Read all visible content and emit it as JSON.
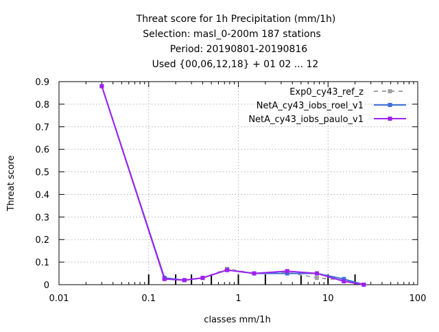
{
  "chart_data": {
    "type": "line",
    "title_lines": [
      "Threat score  for 1h Precipitation (mm/1h)",
      "Selection: masl_0-200m    187 stations",
      "Period: 20190801-20190816",
      "Used {00,06,12,18} + 01 02 ... 12"
    ],
    "xlabel": "classes mm/1h",
    "ylabel": "Threat score",
    "xscale": "log",
    "xlim": [
      0.01,
      100
    ],
    "ylim": [
      0,
      0.9
    ],
    "x_ticks": [
      0.01,
      0.1,
      1,
      10,
      100
    ],
    "x_tick_labels": [
      "0.01",
      "0.1",
      "1",
      "10",
      "100"
    ],
    "y_ticks": [
      0,
      0.1,
      0.2,
      0.3,
      0.4,
      0.5,
      0.6,
      0.7,
      0.8,
      0.9
    ],
    "y_tick_labels": [
      "0",
      "0.1",
      "0.2",
      "0.3",
      "0.4",
      "0.5",
      "0.6",
      "0.7",
      "0.8",
      "0.9"
    ],
    "grid": true,
    "legend_position": "top-right",
    "class_markers_x": [
      0.1,
      0.2,
      0.3,
      0.5,
      1,
      2,
      5,
      10,
      20
    ],
    "x": [
      0.03,
      0.15,
      0.25,
      0.4,
      0.75,
      1.5,
      3.5,
      7.5,
      15,
      25
    ],
    "series": [
      {
        "name": "Exp0_cy43_ref_z",
        "color": "#a0a0a0",
        "dash": "dashed",
        "values": [
          0.88,
          0.03,
          0.02,
          0.03,
          0.07,
          0.05,
          0.055,
          0.03,
          0.02,
          0.0
        ]
      },
      {
        "name": "NetA_cy43_iobs_roel_v1",
        "color": "#3a6fd8",
        "dash": "solid",
        "values": [
          0.88,
          0.03,
          0.02,
          0.03,
          0.065,
          0.05,
          0.05,
          0.05,
          0.025,
          0.0
        ]
      },
      {
        "name": "NetA_cy43_iobs_paulo_v1",
        "color": "#a020f0",
        "dash": "solid",
        "values": [
          0.88,
          0.025,
          0.02,
          0.03,
          0.065,
          0.05,
          0.06,
          0.05,
          0.015,
          0.0
        ]
      }
    ]
  }
}
